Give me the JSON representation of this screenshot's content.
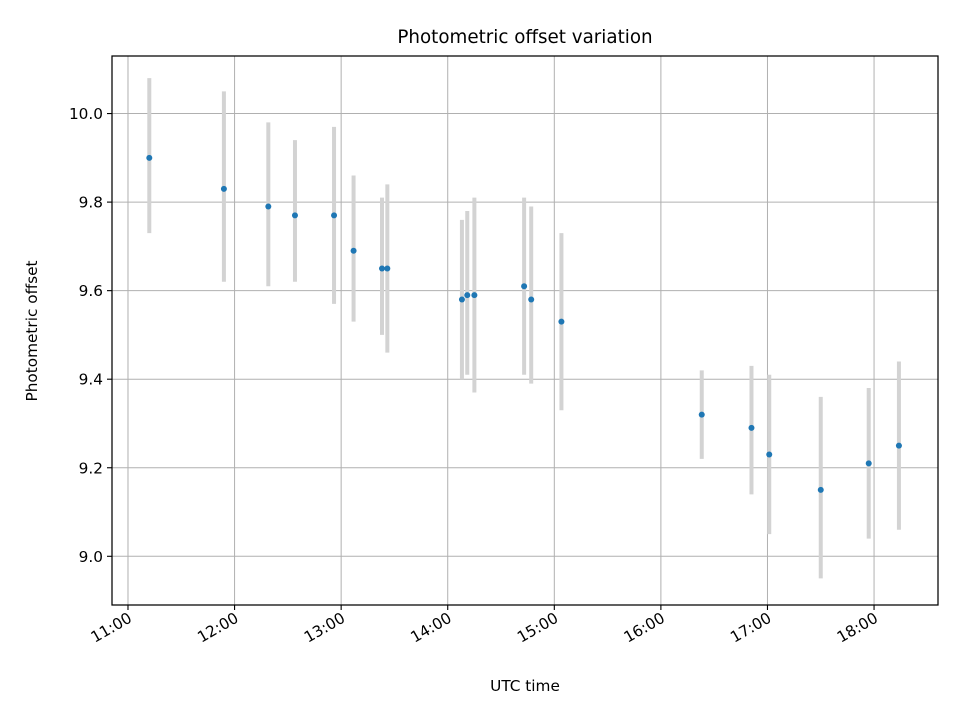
{
  "chart_data": {
    "type": "scatter",
    "title": "Photometric offset variation",
    "xlabel": "UTC time",
    "ylabel": "Photometric offset",
    "grid": true,
    "legend": "none",
    "xlim": [
      "10:51",
      "18:36"
    ],
    "ylim": [
      8.89,
      10.13
    ],
    "x_ticks": [
      "11:00",
      "12:00",
      "13:00",
      "14:00",
      "15:00",
      "16:00",
      "17:00",
      "18:00"
    ],
    "y_ticks": [
      "9.0",
      "9.2",
      "9.4",
      "9.6",
      "9.8",
      "10.0"
    ],
    "point_color": "#1f77b4",
    "errorbar_color": "#d3d3d3",
    "points": [
      {
        "x": "11:12",
        "y": 9.9,
        "ylow": 9.73,
        "yhigh": 10.08
      },
      {
        "x": "11:54",
        "y": 9.83,
        "ylow": 9.62,
        "yhigh": 10.05
      },
      {
        "x": "12:19",
        "y": 9.79,
        "ylow": 9.61,
        "yhigh": 9.98
      },
      {
        "x": "12:34",
        "y": 9.77,
        "ylow": 9.62,
        "yhigh": 9.94
      },
      {
        "x": "12:56",
        "y": 9.77,
        "ylow": 9.57,
        "yhigh": 9.97
      },
      {
        "x": "13:07",
        "y": 9.69,
        "ylow": 9.53,
        "yhigh": 9.86
      },
      {
        "x": "13:23",
        "y": 9.65,
        "ylow": 9.5,
        "yhigh": 9.81
      },
      {
        "x": "13:26",
        "y": 9.65,
        "ylow": 9.46,
        "yhigh": 9.84
      },
      {
        "x": "14:08",
        "y": 9.58,
        "ylow": 9.4,
        "yhigh": 9.76
      },
      {
        "x": "14:11",
        "y": 9.59,
        "ylow": 9.41,
        "yhigh": 9.78
      },
      {
        "x": "14:15",
        "y": 9.59,
        "ylow": 9.37,
        "yhigh": 9.81
      },
      {
        "x": "14:43",
        "y": 9.61,
        "ylow": 9.41,
        "yhigh": 9.81
      },
      {
        "x": "14:47",
        "y": 9.58,
        "ylow": 9.39,
        "yhigh": 9.79
      },
      {
        "x": "15:04",
        "y": 9.53,
        "ylow": 9.33,
        "yhigh": 9.73
      },
      {
        "x": "16:23",
        "y": 9.32,
        "ylow": 9.22,
        "yhigh": 9.42
      },
      {
        "x": "16:51",
        "y": 9.29,
        "ylow": 9.14,
        "yhigh": 9.43
      },
      {
        "x": "17:01",
        "y": 9.23,
        "ylow": 9.05,
        "yhigh": 9.41
      },
      {
        "x": "17:30",
        "y": 9.15,
        "ylow": 8.95,
        "yhigh": 9.36
      },
      {
        "x": "17:57",
        "y": 9.21,
        "ylow": 9.04,
        "yhigh": 9.38
      },
      {
        "x": "18:14",
        "y": 9.25,
        "ylow": 9.06,
        "yhigh": 9.44
      }
    ]
  }
}
